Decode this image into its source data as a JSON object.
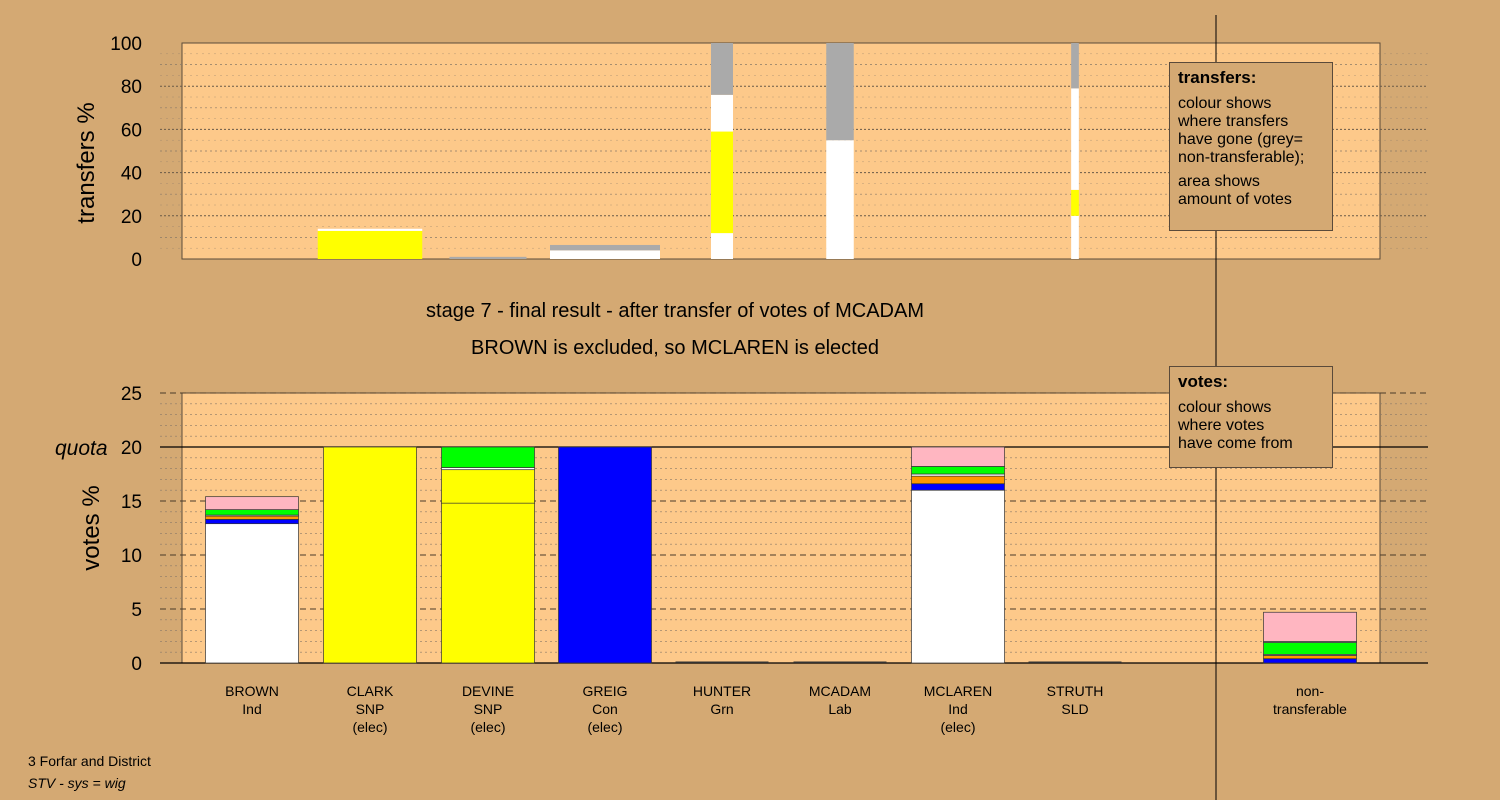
{
  "stage_line1": "stage 7 - final result - after transfer of votes of MCADAM",
  "stage_line2": "BROWN is excluded, so MCLAREN is elected",
  "footer": {
    "line1": "3 Forfar and District",
    "line2": "STV - sys = wig"
  },
  "transfers_box": {
    "title": "transfers:",
    "p1": "colour shows\nwhere transfers\nhave gone (grey=\nnon-transferable);",
    "p2": "area shows\namount of votes"
  },
  "votes_box": {
    "title": "votes:",
    "p1": "colour shows\nwhere votes\nhave come from"
  },
  "colors": {
    "background": "#d4a973",
    "plot_area": "#fdc98a",
    "Ind": "#ffffff",
    "SNP": "#ffff00",
    "Con": "#0000ff",
    "Grn": "#00ff00",
    "Lab": "#ffb6c1",
    "SLD": "#ff9900",
    "nontransferable": "#aaaaaa"
  },
  "chart_data": [
    {
      "type": "bar",
      "ylabel": "transfers %",
      "ylim": [
        0,
        100
      ],
      "yticks": [
        "0",
        "20",
        "40",
        "60",
        "80",
        "100"
      ],
      "bars": [
        {
          "candidate": "CLARK",
          "width_share": 0.95,
          "segments": [
            {
              "party": "SNP",
              "value": 13
            },
            {
              "party": "Ind",
              "value": 1
            }
          ]
        },
        {
          "candidate": "DEVINE",
          "width_share": 0.7,
          "segments": [
            {
              "party": "nontransferable",
              "value": 1
            }
          ]
        },
        {
          "candidate": "GREIG",
          "width_share": 1.0,
          "segments": [
            {
              "party": "Ind",
              "value": 4
            },
            {
              "party": "nontransferable",
              "value": 2.5
            }
          ]
        },
        {
          "candidate": "HUNTER",
          "width_share": 0.2,
          "segments": [
            {
              "party": "Ind",
              "value": 12
            },
            {
              "party": "SNP",
              "value": 47
            },
            {
              "party": "Ind",
              "value": 17
            },
            {
              "party": "nontransferable",
              "value": 24
            }
          ]
        },
        {
          "candidate": "MCADAM",
          "width_share": 0.25,
          "segments": [
            {
              "party": "Ind",
              "value": 55
            },
            {
              "party": "nontransferable",
              "value": 45
            }
          ]
        },
        {
          "candidate": "STRUTH",
          "width_share": 0.07,
          "segments": [
            {
              "party": "Ind",
              "value": 20
            },
            {
              "party": "SNP",
              "value": 12
            },
            {
              "party": "Ind",
              "value": 47
            },
            {
              "party": "nontransferable",
              "value": 21
            }
          ]
        }
      ]
    },
    {
      "type": "bar",
      "ylabel": "votes %",
      "ylim": [
        0,
        25
      ],
      "yticks": [
        "0",
        "5",
        "10",
        "15",
        "20",
        "25"
      ],
      "quota_label": "quota",
      "quota": 20,
      "categories": [
        {
          "name": "BROWN",
          "party": "Ind",
          "status": ""
        },
        {
          "name": "CLARK",
          "party": "SNP",
          "status": "(elec)"
        },
        {
          "name": "DEVINE",
          "party": "SNP",
          "status": "(elec)"
        },
        {
          "name": "GREIG",
          "party": "Con",
          "status": "(elec)"
        },
        {
          "name": "HUNTER",
          "party": "Grn",
          "status": ""
        },
        {
          "name": "MCADAM",
          "party": "Lab",
          "status": ""
        },
        {
          "name": "MCLAREN",
          "party": "Ind",
          "status": "(elec)"
        },
        {
          "name": "STRUTH",
          "party": "SLD",
          "status": ""
        }
      ],
      "nontransferable_label": "non-\ntransferable",
      "bars": [
        {
          "candidate": "BROWN",
          "segments": [
            {
              "party": "Ind",
              "value": 12.9
            },
            {
              "party": "Con",
              "value": 0.4
            },
            {
              "party": "SLD",
              "value": 0.3
            },
            {
              "party": "Ind",
              "value": 0.1
            },
            {
              "party": "Grn",
              "value": 0.5
            },
            {
              "party": "Lab",
              "value": 1.2
            }
          ]
        },
        {
          "candidate": "CLARK",
          "segments": [
            {
              "party": "SNP",
              "value": 20
            }
          ]
        },
        {
          "candidate": "DEVINE",
          "segments": [
            {
              "party": "SNP",
              "value": 14.8
            },
            {
              "party": "SNP",
              "value": 3.1
            },
            {
              "party": "Ind",
              "value": 0.2
            },
            {
              "party": "Grn",
              "value": 1.9
            }
          ]
        },
        {
          "candidate": "GREIG",
          "segments": [
            {
              "party": "Con",
              "value": 20
            }
          ]
        },
        {
          "candidate": "HUNTER",
          "segments": []
        },
        {
          "candidate": "MCADAM",
          "segments": []
        },
        {
          "candidate": "MCLAREN",
          "segments": [
            {
              "party": "Ind",
              "value": 16
            },
            {
              "party": "Con",
              "value": 0.6
            },
            {
              "party": "SLD",
              "value": 0.7
            },
            {
              "party": "Ind",
              "value": 0.2
            },
            {
              "party": "Grn",
              "value": 0.7
            },
            {
              "party": "Lab",
              "value": 1.8
            }
          ]
        },
        {
          "candidate": "STRUTH",
          "segments": []
        },
        {
          "candidate": "non-transferable",
          "segments": [
            {
              "party": "Con",
              "value": 0.4
            },
            {
              "party": "SLD",
              "value": 0.3
            },
            {
              "party": "Ind",
              "value": 0.1
            },
            {
              "party": "Grn",
              "value": 1.1
            },
            {
              "party": "Ind",
              "value": 0.1
            },
            {
              "party": "Lab",
              "value": 2.7
            }
          ]
        }
      ]
    }
  ]
}
